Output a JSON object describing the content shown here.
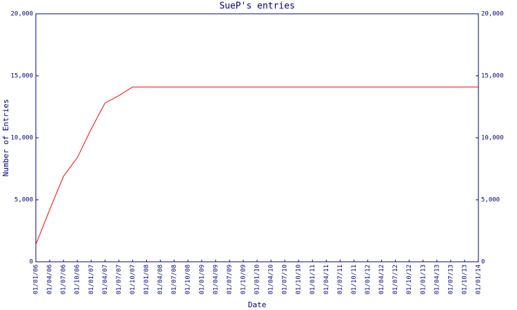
{
  "chart_data": {
    "type": "line",
    "title": "SueP's entries",
    "x_label": "Date",
    "y_label": "Number of Entries",
    "categories": [
      "01/01/06",
      "01/04/06",
      "01/07/06",
      "01/10/06",
      "01/01/07",
      "01/04/07",
      "01/07/07",
      "01/10/07",
      "01/01/08",
      "01/04/08",
      "01/07/08",
      "01/10/08",
      "01/01/09",
      "01/04/09",
      "01/07/09",
      "01/10/09",
      "01/01/10",
      "01/04/10",
      "01/07/10",
      "01/10/10",
      "01/01/11",
      "01/04/11",
      "01/07/11",
      "01/10/11",
      "01/01/12",
      "01/04/12",
      "01/07/12",
      "01/10/12",
      "01/01/13",
      "01/04/13",
      "01/07/13",
      "01/10/13",
      "01/01/14"
    ],
    "series": [
      {
        "name": "SueP",
        "color": "#ff0000",
        "values": [
          1400,
          4200,
          6900,
          8400,
          10700,
          12800,
          13400,
          14100,
          14100,
          14100,
          14100,
          14100,
          14100,
          14100,
          14100,
          14100,
          14100,
          14100,
          14100,
          14100,
          14100,
          14100,
          14100,
          14100,
          14100,
          14100,
          14100,
          14100,
          14100,
          14100,
          14100,
          14100,
          14100
        ]
      }
    ],
    "ylim": [
      0,
      20000
    ],
    "yticks": [
      0,
      {
        "value": 5000,
        "label": "5,000"
      },
      {
        "value": 10000,
        "label": "10,000"
      },
      {
        "value": 15000,
        "label": "15,000"
      },
      {
        "value": 20000,
        "label": "20,000"
      }
    ]
  }
}
